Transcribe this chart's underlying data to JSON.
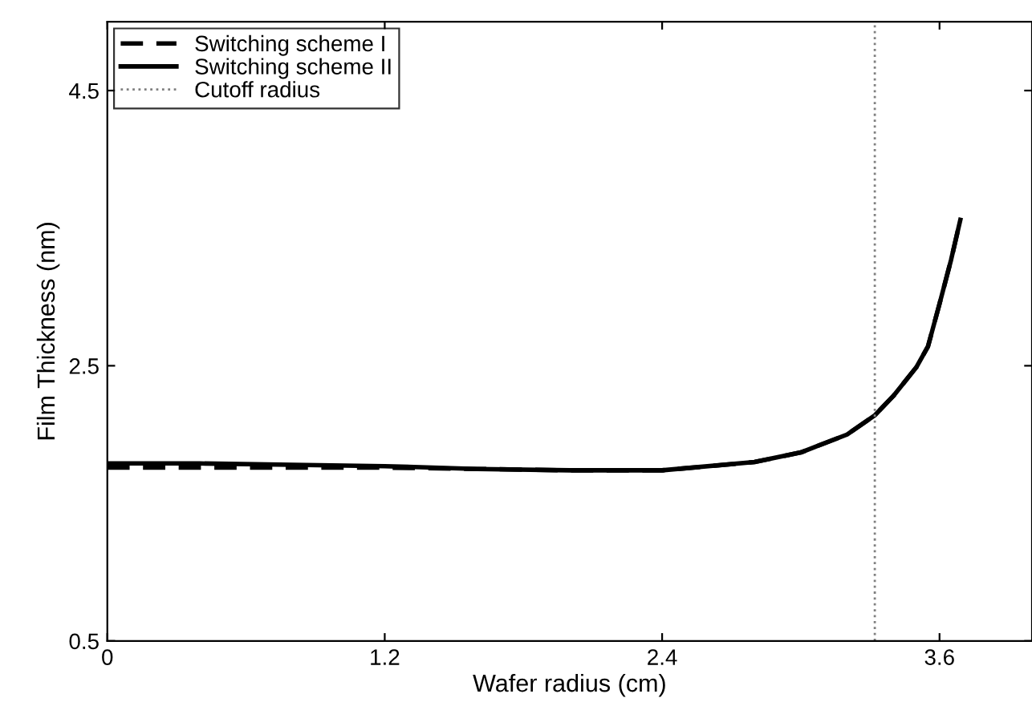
{
  "chart_data": {
    "type": "line",
    "xlabel": "Wafer radius (cm)",
    "ylabel": "Film Thickness (nm)",
    "xlim": [
      0,
      4.0
    ],
    "ylim": [
      0.5,
      5.0
    ],
    "xticks": [
      0,
      1.2,
      2.4,
      3.6
    ],
    "yticks": [
      0.5,
      2.5,
      4.5
    ],
    "grid": false,
    "legend": "top left",
    "series": [
      {
        "name": "Switching scheme I",
        "color": "#000000",
        "line_style": "dashed",
        "x": [
          0,
          0.4,
          0.8,
          1.2,
          1.6,
          2.0,
          2.4,
          2.8,
          3.0,
          3.2,
          3.32,
          3.4,
          3.5,
          3.55,
          3.6,
          3.65,
          3.69
        ],
        "values": [
          1.76,
          1.76,
          1.76,
          1.76,
          1.75,
          1.74,
          1.74,
          1.8,
          1.87,
          2.0,
          2.14,
          2.28,
          2.49,
          2.64,
          2.95,
          3.27,
          3.56
        ]
      },
      {
        "name": "Switching scheme II",
        "color": "#000000",
        "line_style": "solid",
        "x": [
          0,
          0.4,
          0.8,
          1.2,
          1.6,
          2.0,
          2.4,
          2.8,
          3.0,
          3.2,
          3.32,
          3.4,
          3.5,
          3.55,
          3.6,
          3.65,
          3.69
        ],
        "values": [
          1.79,
          1.79,
          1.78,
          1.77,
          1.75,
          1.74,
          1.74,
          1.8,
          1.87,
          2.0,
          2.14,
          2.28,
          2.49,
          2.64,
          2.95,
          3.27,
          3.56
        ]
      },
      {
        "name": "Cutoff radius",
        "color": "#808080",
        "line_style": "dotted",
        "x": [
          3.32,
          3.32
        ],
        "values": [
          0.5,
          5.0
        ]
      }
    ]
  }
}
